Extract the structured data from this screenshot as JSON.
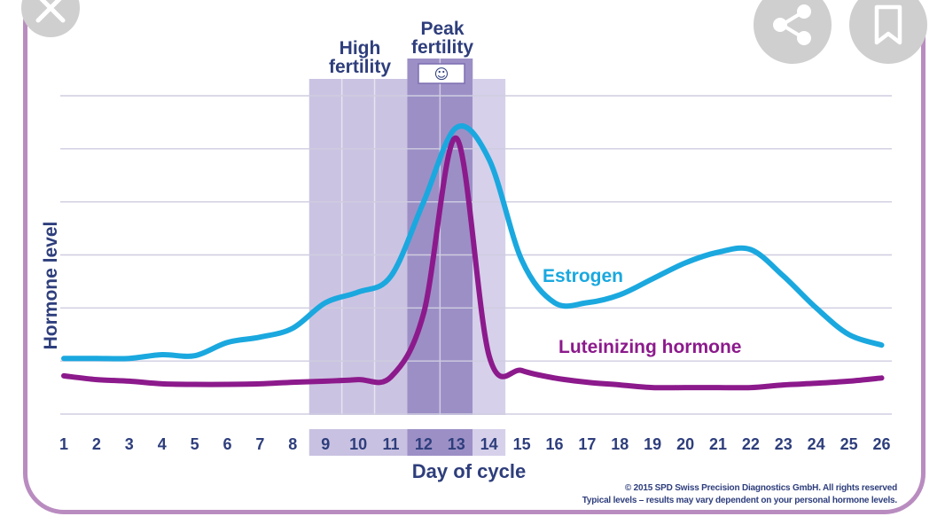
{
  "chart_data": {
    "type": "line",
    "xlabel": "Day of cycle",
    "ylabel": "Hormone level",
    "x": [
      1,
      2,
      3,
      4,
      5,
      6,
      7,
      8,
      9,
      10,
      11,
      12,
      13,
      14,
      15,
      16,
      17,
      18,
      19,
      20,
      21,
      22,
      23,
      24,
      25,
      26
    ],
    "ylim": [
      0,
      6
    ],
    "grid": true,
    "series": [
      {
        "name": "Estrogen",
        "color": "#1aa8df",
        "values": [
          1.05,
          1.05,
          1.05,
          1.12,
          1.1,
          1.35,
          1.45,
          1.62,
          2.1,
          2.3,
          2.6,
          4.0,
          5.4,
          4.8,
          2.9,
          2.1,
          2.1,
          2.25,
          2.55,
          2.85,
          3.05,
          3.1,
          2.6,
          2.0,
          1.5,
          1.3
        ]
      },
      {
        "name": "Luteinizing hormone",
        "color": "#8c1a8c",
        "values": [
          0.72,
          0.65,
          0.62,
          0.57,
          0.56,
          0.56,
          0.57,
          0.6,
          0.62,
          0.65,
          0.7,
          1.9,
          5.2,
          1.1,
          0.82,
          0.68,
          0.6,
          0.55,
          0.5,
          0.5,
          0.5,
          0.5,
          0.55,
          0.58,
          0.62,
          0.68
        ]
      }
    ],
    "highlight_regions": [
      {
        "label": "High fertility",
        "days": [
          9,
          10,
          11
        ]
      },
      {
        "label": "Peak fertility",
        "days": [
          12,
          13
        ],
        "icon": "smiley-icon"
      },
      {
        "label": "",
        "days": [
          14
        ]
      }
    ]
  },
  "labels": {
    "high_fertility": "High fertility",
    "peak_fertility": "Peak fertility",
    "estrogen": "Estrogen",
    "lh": "Luteinizing hormone",
    "ylabel": "Hormone level",
    "xlabel": "Day of cycle",
    "smiley": "☺"
  },
  "copyright": {
    "line1": "© 2015 SPD Swiss Precision Diagnostics GmbH. All rights reserved",
    "line2": "Typical levels – results may vary dependent on your personal hormone levels."
  },
  "controls": {
    "close_icon": "close-icon",
    "share_icon": "share-icon",
    "bookmark_icon": "bookmark-icon"
  }
}
